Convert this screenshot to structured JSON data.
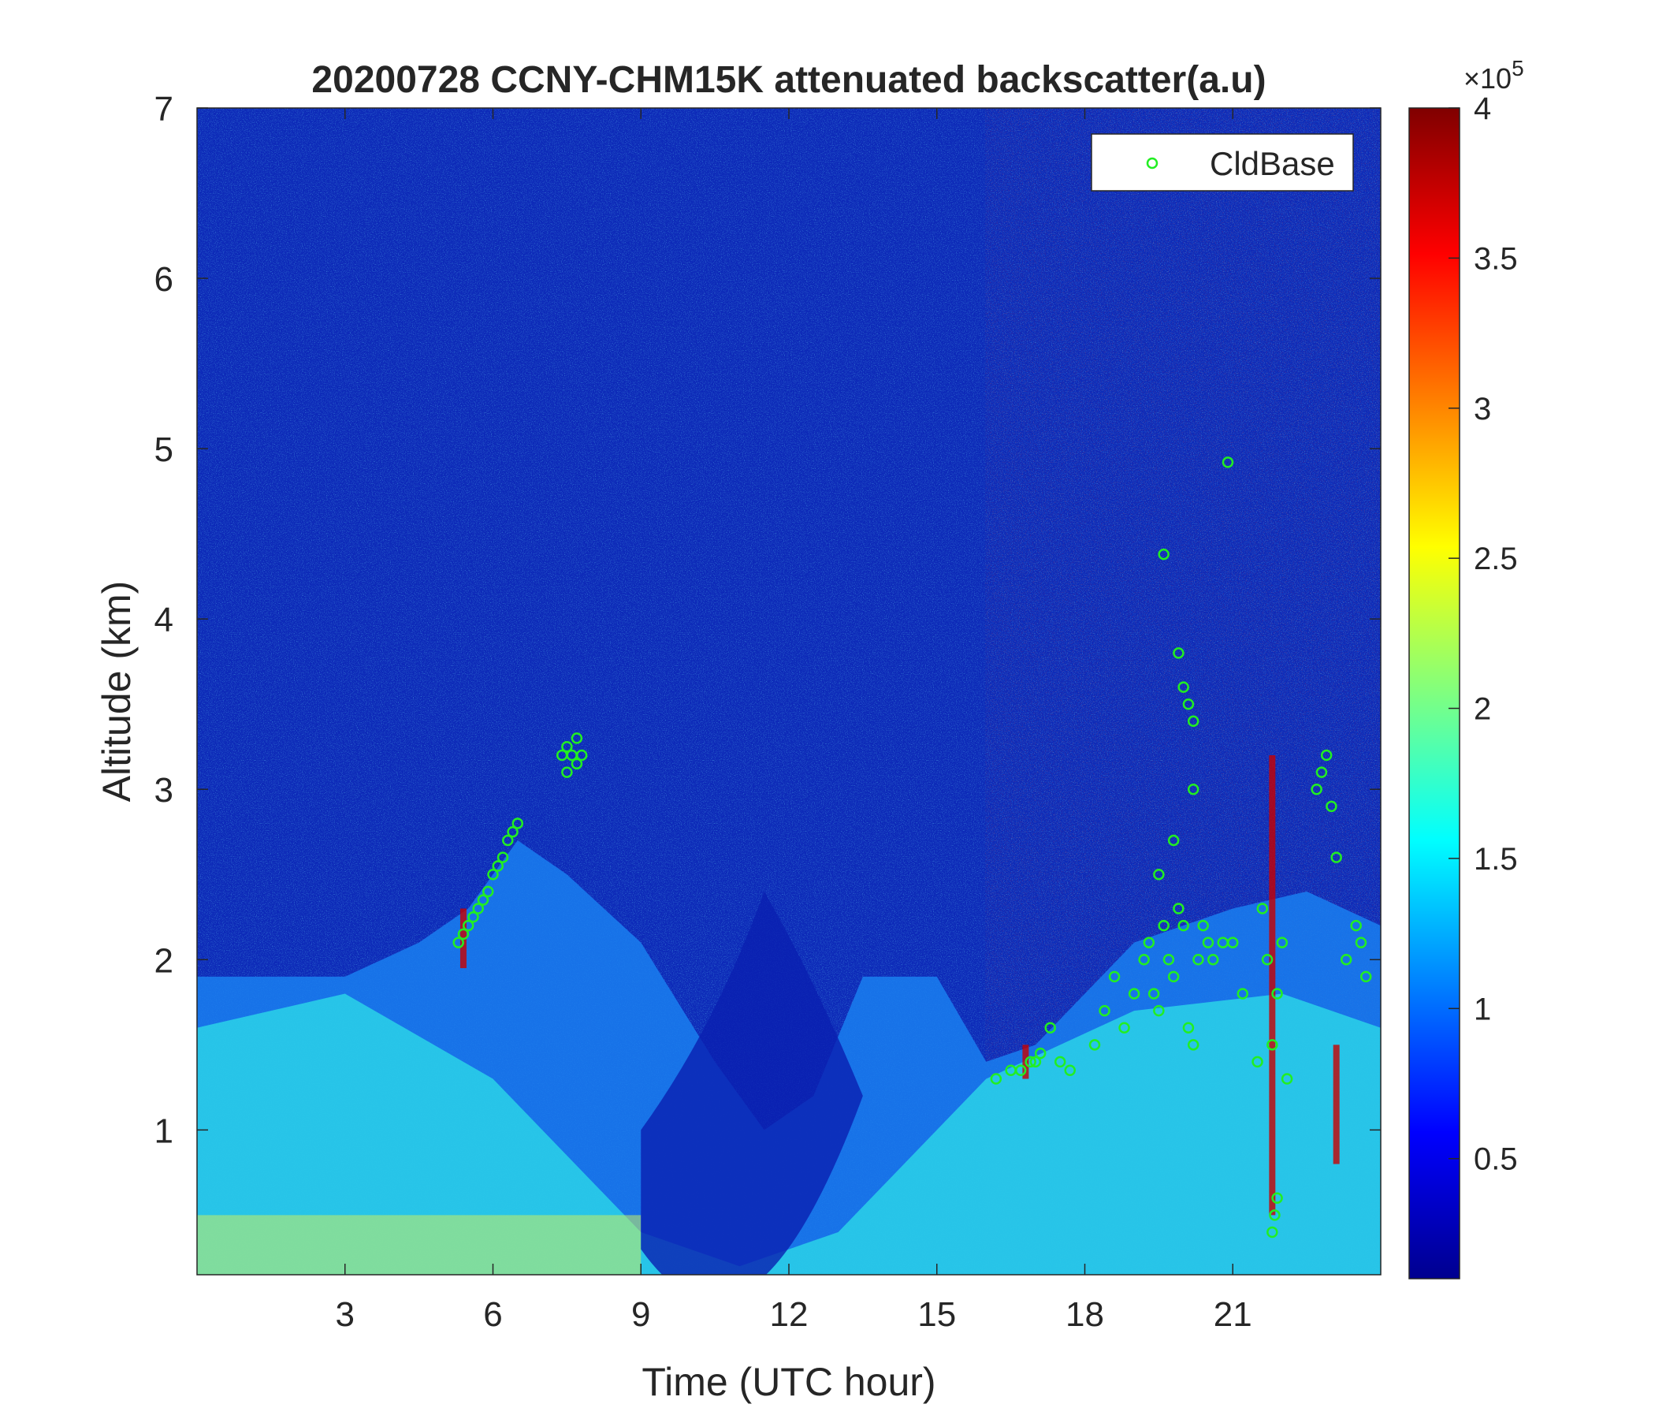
{
  "chart_data": {
    "type": "heatmap",
    "title": "20200728 CCNY-CHM15K attenuated backscatter(a.u)",
    "xlabel": "Time (UTC hour)",
    "ylabel": "Altitude (km)",
    "xlim": [
      0,
      24
    ],
    "ylim": [
      0.15,
      7
    ],
    "xticks": [
      3,
      6,
      9,
      12,
      15,
      18,
      21
    ],
    "yticks": [
      1,
      2,
      3,
      4,
      5,
      6,
      7
    ],
    "colorbar": {
      "colormap": "jet",
      "range": [
        0.1,
        4
      ],
      "ticks": [
        0.5,
        1,
        1.5,
        2,
        2.5,
        3,
        3.5,
        4
      ],
      "exponent_base": "×10",
      "exponent_power": "5"
    },
    "legend": {
      "position": "top-right",
      "entries": [
        {
          "label": "CldBase",
          "marker": "circle",
          "color": "#22ee22"
        }
      ]
    },
    "heatmap_structure": {
      "surface_layer": [
        [
          0,
          0.3,
          1.6
        ],
        [
          3,
          0.3,
          1.8
        ],
        [
          6,
          0.3,
          1.3
        ],
        [
          9,
          0.3,
          0.4
        ],
        [
          11,
          0.3,
          0.2
        ],
        [
          13,
          0.3,
          0.4
        ],
        [
          16,
          0.3,
          1.3
        ],
        [
          19,
          0.3,
          1.7
        ],
        [
          22,
          0.3,
          1.8
        ],
        [
          24,
          0.3,
          1.6
        ]
      ],
      "aerosol_layer_top_km": [
        [
          0,
          1.9
        ],
        [
          3,
          1.9
        ],
        [
          4.5,
          2.1
        ],
        [
          5.5,
          2.3
        ],
        [
          6.5,
          2.7
        ],
        [
          7.5,
          2.5
        ],
        [
          9,
          2.1
        ],
        [
          10.5,
          1.4
        ],
        [
          11.5,
          1.0
        ],
        [
          12.5,
          1.2
        ],
        [
          13.5,
          1.9
        ],
        [
          15,
          1.9
        ],
        [
          16,
          1.4
        ],
        [
          17,
          1.5
        ],
        [
          19,
          2.1
        ],
        [
          21,
          2.3
        ],
        [
          22.5,
          2.4
        ],
        [
          24,
          2.2
        ]
      ],
      "high_signal_bands": [
        [
          5.4,
          1.95,
          2.3
        ],
        [
          16.8,
          1.3,
          1.5
        ],
        [
          21.8,
          0.5,
          3.2
        ],
        [
          23.1,
          0.8,
          1.5
        ]
      ]
    },
    "series": [
      {
        "name": "CldBase",
        "type": "scatter",
        "x": [
          5.3,
          5.4,
          5.5,
          5.6,
          5.7,
          5.8,
          5.9,
          6.0,
          6.1,
          6.2,
          6.3,
          6.4,
          6.5,
          7.4,
          7.5,
          7.6,
          7.7,
          7.8,
          7.5,
          7.7,
          16.2,
          16.5,
          16.7,
          16.9,
          17.0,
          17.1,
          17.3,
          17.5,
          17.7,
          18.2,
          18.4,
          18.6,
          18.8,
          19.0,
          19.2,
          19.3,
          19.4,
          19.5,
          19.6,
          19.7,
          19.8,
          19.9,
          20.0,
          20.1,
          20.2,
          20.3,
          20.4,
          20.5,
          20.6,
          20.8,
          21.0,
          21.5,
          21.6,
          21.7,
          21.8,
          21.9,
          22.0,
          22.1,
          22.7,
          22.8,
          22.9,
          23.0,
          23.1,
          23.3,
          23.5,
          23.6,
          23.7,
          19.6,
          19.9,
          20.0,
          20.1,
          20.2,
          20.9,
          19.5,
          19.8,
          20.2,
          21.8,
          21.85,
          21.9,
          21.2
        ],
        "y": [
          2.1,
          2.15,
          2.2,
          2.25,
          2.3,
          2.35,
          2.4,
          2.5,
          2.55,
          2.6,
          2.7,
          2.75,
          2.8,
          3.2,
          3.25,
          3.2,
          3.15,
          3.2,
          3.1,
          3.3,
          1.3,
          1.35,
          1.35,
          1.4,
          1.4,
          1.45,
          1.6,
          1.4,
          1.35,
          1.5,
          1.7,
          1.9,
          1.6,
          1.8,
          2.0,
          2.1,
          1.8,
          1.7,
          2.2,
          2.0,
          1.9,
          2.3,
          2.2,
          1.6,
          1.5,
          2.0,
          2.2,
          2.1,
          2.0,
          2.1,
          2.1,
          1.4,
          2.3,
          2.0,
          1.5,
          1.8,
          2.1,
          1.3,
          3.0,
          3.1,
          3.2,
          2.9,
          2.6,
          2.0,
          2.2,
          2.1,
          1.9,
          4.38,
          3.8,
          3.6,
          3.5,
          3.4,
          4.92,
          2.5,
          2.7,
          3.0,
          0.4,
          0.5,
          0.6,
          1.8
        ]
      }
    ]
  }
}
